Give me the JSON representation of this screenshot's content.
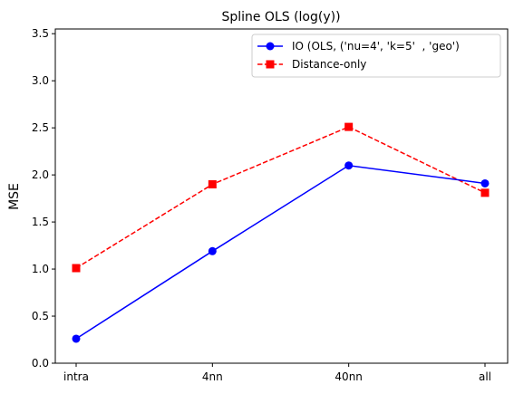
{
  "chart_data": {
    "type": "line",
    "title": "Spline OLS (log(y))",
    "xlabel": "",
    "ylabel": "MSE",
    "categories": [
      "intra",
      "4nn",
      "40nn",
      "all"
    ],
    "ylim": [
      0,
      3.55
    ],
    "yticks": [
      0.0,
      0.5,
      1.0,
      1.5,
      2.0,
      2.5,
      3.0,
      3.5
    ],
    "grid": false,
    "legend_position": "top-right",
    "series": [
      {
        "name": "IO (OLS, ('nu=4', 'k=5'  , 'geo')",
        "values": [
          0.26,
          1.19,
          2.1,
          1.91
        ],
        "color": "#0000ff",
        "marker": "circle",
        "line_style": "solid"
      },
      {
        "name": "Distance-only",
        "values": [
          1.01,
          1.9,
          2.51,
          1.81
        ],
        "color": "#ff0000",
        "marker": "square",
        "line_style": "dashed"
      }
    ]
  }
}
